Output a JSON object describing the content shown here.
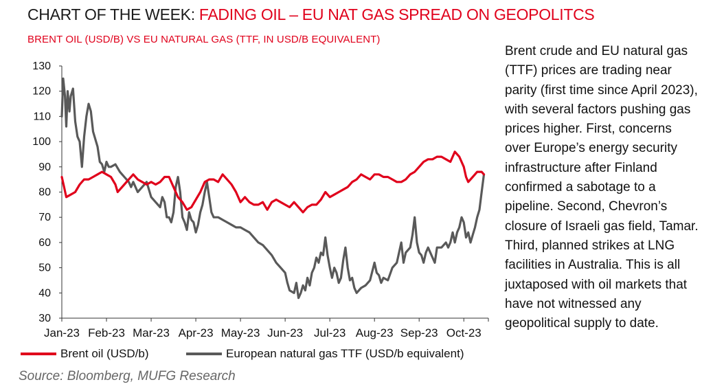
{
  "header": {
    "title_prefix": "CHART OF THE WEEK: ",
    "title_main": "FADING OIL – EU NAT GAS SPREAD ON GEOPOLITCS",
    "subtitle": "BRENT OIL (USD/B) VS EU NATURAL GAS (TTF, IN USD/B EQUIVALENT)"
  },
  "commentary": "Brent crude and EU natural gas (TTF) prices are trading near parity (first time since April 2023), with several factors pushing gas prices higher. First, concerns over Europe’s energy security infrastructure after Finland confirmed a sabotage to a pipeline. Second, Chevron’s closure of Israeli gas field, Tamar. Third, planned strikes at LNG facilities in Australia. This is all juxtaposed with oil markets that have not witnessed any geopolitical supply to date.",
  "source": "Source: Bloomberg, MUFG Research",
  "colors": {
    "brand_red": "#e0001b",
    "gas_grey": "#595959",
    "axis": "#333333"
  },
  "chart_data": {
    "type": "line",
    "title": "FADING OIL – EU NAT GAS SPREAD ON GEOPOLITCS",
    "subtitle": "BRENT OIL (USD/B) VS EU NATURAL GAS (TTF, IN USD/B EQUIVALENT)",
    "xlabel": "",
    "ylabel": "",
    "ylim": [
      30,
      130
    ],
    "yticks": [
      "30",
      "40",
      "50",
      "60",
      "70",
      "80",
      "90",
      "100",
      "110",
      "120",
      "130"
    ],
    "xticks": [
      "Jan-23",
      "Feb-23",
      "Mar-23",
      "Apr-23",
      "May-23",
      "Jun-23",
      "Jul-23",
      "Aug-23",
      "Sep-23",
      "Oct-23"
    ],
    "x_unit": "months since 1 Jan 2023",
    "xlim": [
      0,
      9.55
    ],
    "grid": false,
    "legend_position": "bottom",
    "series": [
      {
        "name": "Brent oil (USD/b)",
        "color": "#e0001b",
        "points": [
          [
            0.0,
            86
          ],
          [
            0.05,
            82
          ],
          [
            0.1,
            78
          ],
          [
            0.2,
            79
          ],
          [
            0.3,
            80
          ],
          [
            0.4,
            83
          ],
          [
            0.5,
            85
          ],
          [
            0.6,
            85
          ],
          [
            0.7,
            86
          ],
          [
            0.8,
            87
          ],
          [
            0.9,
            88
          ],
          [
            1.0,
            87
          ],
          [
            1.1,
            86
          ],
          [
            1.2,
            83
          ],
          [
            1.25,
            80
          ],
          [
            1.3,
            81
          ],
          [
            1.4,
            83
          ],
          [
            1.5,
            85
          ],
          [
            1.6,
            87
          ],
          [
            1.7,
            85
          ],
          [
            1.8,
            84
          ],
          [
            1.9,
            83
          ],
          [
            2.0,
            84
          ],
          [
            2.1,
            83
          ],
          [
            2.2,
            84
          ],
          [
            2.3,
            86
          ],
          [
            2.4,
            86
          ],
          [
            2.5,
            82
          ],
          [
            2.6,
            78
          ],
          [
            2.7,
            76
          ],
          [
            2.8,
            73
          ],
          [
            2.9,
            74
          ],
          [
            3.0,
            77
          ],
          [
            3.1,
            80
          ],
          [
            3.2,
            84
          ],
          [
            3.3,
            85
          ],
          [
            3.4,
            85
          ],
          [
            3.5,
            84
          ],
          [
            3.6,
            87
          ],
          [
            3.7,
            85
          ],
          [
            3.8,
            83
          ],
          [
            3.9,
            80
          ],
          [
            4.0,
            76
          ],
          [
            4.1,
            78
          ],
          [
            4.2,
            76
          ],
          [
            4.3,
            75
          ],
          [
            4.4,
            75
          ],
          [
            4.5,
            76
          ],
          [
            4.6,
            73
          ],
          [
            4.7,
            76
          ],
          [
            4.8,
            77
          ],
          [
            4.9,
            76
          ],
          [
            5.0,
            75
          ],
          [
            5.1,
            74
          ],
          [
            5.2,
            76
          ],
          [
            5.3,
            74
          ],
          [
            5.4,
            72
          ],
          [
            5.5,
            74
          ],
          [
            5.6,
            75
          ],
          [
            5.7,
            75
          ],
          [
            5.8,
            77
          ],
          [
            5.9,
            80
          ],
          [
            6.0,
            78
          ],
          [
            6.1,
            79
          ],
          [
            6.2,
            80
          ],
          [
            6.3,
            81
          ],
          [
            6.4,
            82
          ],
          [
            6.5,
            84
          ],
          [
            6.6,
            85
          ],
          [
            6.7,
            87
          ],
          [
            6.8,
            86
          ],
          [
            6.9,
            85
          ],
          [
            7.0,
            87
          ],
          [
            7.1,
            87
          ],
          [
            7.2,
            86
          ],
          [
            7.3,
            86
          ],
          [
            7.4,
            85
          ],
          [
            7.5,
            84
          ],
          [
            7.6,
            84
          ],
          [
            7.7,
            85
          ],
          [
            7.8,
            87
          ],
          [
            7.9,
            88
          ],
          [
            8.0,
            90
          ],
          [
            8.1,
            92
          ],
          [
            8.2,
            93
          ],
          [
            8.3,
            93
          ],
          [
            8.4,
            94
          ],
          [
            8.5,
            94
          ],
          [
            8.6,
            93
          ],
          [
            8.7,
            92
          ],
          [
            8.8,
            96
          ],
          [
            8.9,
            94
          ],
          [
            9.0,
            90
          ],
          [
            9.05,
            86
          ],
          [
            9.1,
            84
          ],
          [
            9.2,
            86
          ],
          [
            9.3,
            88
          ],
          [
            9.4,
            88
          ],
          [
            9.45,
            87
          ]
        ]
      },
      {
        "name": "European natural gas TTF (USD/b equivalent)",
        "color": "#595959",
        "points": [
          [
            0.0,
            110
          ],
          [
            0.03,
            125
          ],
          [
            0.07,
            118
          ],
          [
            0.1,
            106
          ],
          [
            0.13,
            120
          ],
          [
            0.17,
            112
          ],
          [
            0.2,
            118
          ],
          [
            0.25,
            121
          ],
          [
            0.3,
            108
          ],
          [
            0.35,
            102
          ],
          [
            0.4,
            100
          ],
          [
            0.45,
            90
          ],
          [
            0.5,
            102
          ],
          [
            0.55,
            110
          ],
          [
            0.6,
            115
          ],
          [
            0.65,
            112
          ],
          [
            0.7,
            104
          ],
          [
            0.8,
            98
          ],
          [
            0.85,
            92
          ],
          [
            0.9,
            91
          ],
          [
            0.95,
            88
          ],
          [
            1.0,
            92
          ],
          [
            1.05,
            90
          ],
          [
            1.1,
            90
          ],
          [
            1.2,
            91
          ],
          [
            1.3,
            88
          ],
          [
            1.4,
            86
          ],
          [
            1.5,
            84
          ],
          [
            1.55,
            82
          ],
          [
            1.6,
            84
          ],
          [
            1.7,
            80
          ],
          [
            1.8,
            82
          ],
          [
            1.9,
            84
          ],
          [
            2.0,
            78
          ],
          [
            2.1,
            76
          ],
          [
            2.2,
            74
          ],
          [
            2.25,
            78
          ],
          [
            2.3,
            76
          ],
          [
            2.35,
            70
          ],
          [
            2.4,
            70
          ],
          [
            2.45,
            68
          ],
          [
            2.5,
            72
          ],
          [
            2.55,
            82
          ],
          [
            2.6,
            86
          ],
          [
            2.65,
            80
          ],
          [
            2.7,
            70
          ],
          [
            2.75,
            68
          ],
          [
            2.8,
            65
          ],
          [
            2.85,
            72
          ],
          [
            2.9,
            69
          ],
          [
            2.95,
            68
          ],
          [
            3.0,
            64
          ],
          [
            3.05,
            67
          ],
          [
            3.1,
            72
          ],
          [
            3.15,
            75
          ],
          [
            3.2,
            80
          ],
          [
            3.25,
            84
          ],
          [
            3.3,
            78
          ],
          [
            3.35,
            72
          ],
          [
            3.4,
            70
          ],
          [
            3.5,
            70
          ],
          [
            3.6,
            69
          ],
          [
            3.7,
            68
          ],
          [
            3.8,
            67
          ],
          [
            3.9,
            66
          ],
          [
            4.0,
            66
          ],
          [
            4.1,
            65
          ],
          [
            4.2,
            64
          ],
          [
            4.3,
            62
          ],
          [
            4.4,
            60
          ],
          [
            4.5,
            59
          ],
          [
            4.6,
            57
          ],
          [
            4.7,
            55
          ],
          [
            4.8,
            52
          ],
          [
            4.9,
            50
          ],
          [
            5.0,
            48
          ],
          [
            5.05,
            44
          ],
          [
            5.1,
            41
          ],
          [
            5.2,
            40
          ],
          [
            5.25,
            44
          ],
          [
            5.3,
            38
          ],
          [
            5.35,
            40
          ],
          [
            5.4,
            43
          ],
          [
            5.45,
            41
          ],
          [
            5.5,
            46
          ],
          [
            5.55,
            43
          ],
          [
            5.6,
            48
          ],
          [
            5.65,
            50
          ],
          [
            5.7,
            54
          ],
          [
            5.75,
            52
          ],
          [
            5.8,
            56
          ],
          [
            5.85,
            55
          ],
          [
            5.9,
            62
          ],
          [
            5.95,
            55
          ],
          [
            6.0,
            50
          ],
          [
            6.05,
            46
          ],
          [
            6.1,
            50
          ],
          [
            6.15,
            48
          ],
          [
            6.2,
            44
          ],
          [
            6.25,
            46
          ],
          [
            6.3,
            53
          ],
          [
            6.35,
            58
          ],
          [
            6.4,
            50
          ],
          [
            6.45,
            45
          ],
          [
            6.5,
            46
          ],
          [
            6.55,
            42
          ],
          [
            6.6,
            40
          ],
          [
            6.7,
            42
          ],
          [
            6.8,
            43
          ],
          [
            6.9,
            45
          ],
          [
            7.0,
            52
          ],
          [
            7.05,
            48
          ],
          [
            7.1,
            47
          ],
          [
            7.15,
            44
          ],
          [
            7.2,
            46
          ],
          [
            7.3,
            45
          ],
          [
            7.4,
            50
          ],
          [
            7.5,
            52
          ],
          [
            7.6,
            60
          ],
          [
            7.65,
            52
          ],
          [
            7.7,
            56
          ],
          [
            7.8,
            58
          ],
          [
            7.85,
            63
          ],
          [
            7.9,
            70
          ],
          [
            7.95,
            60
          ],
          [
            8.0,
            56
          ],
          [
            8.05,
            55
          ],
          [
            8.1,
            52
          ],
          [
            8.15,
            56
          ],
          [
            8.2,
            58
          ],
          [
            8.3,
            54
          ],
          [
            8.35,
            52
          ],
          [
            8.4,
            58
          ],
          [
            8.5,
            58
          ],
          [
            8.6,
            60
          ],
          [
            8.65,
            58
          ],
          [
            8.7,
            60
          ],
          [
            8.75,
            64
          ],
          [
            8.8,
            60
          ],
          [
            8.85,
            64
          ],
          [
            8.9,
            66
          ],
          [
            8.95,
            70
          ],
          [
            9.0,
            68
          ],
          [
            9.05,
            62
          ],
          [
            9.1,
            64
          ],
          [
            9.15,
            60
          ],
          [
            9.2,
            63
          ],
          [
            9.25,
            66
          ],
          [
            9.3,
            70
          ],
          [
            9.35,
            73
          ],
          [
            9.4,
            80
          ],
          [
            9.45,
            87
          ]
        ]
      }
    ]
  }
}
